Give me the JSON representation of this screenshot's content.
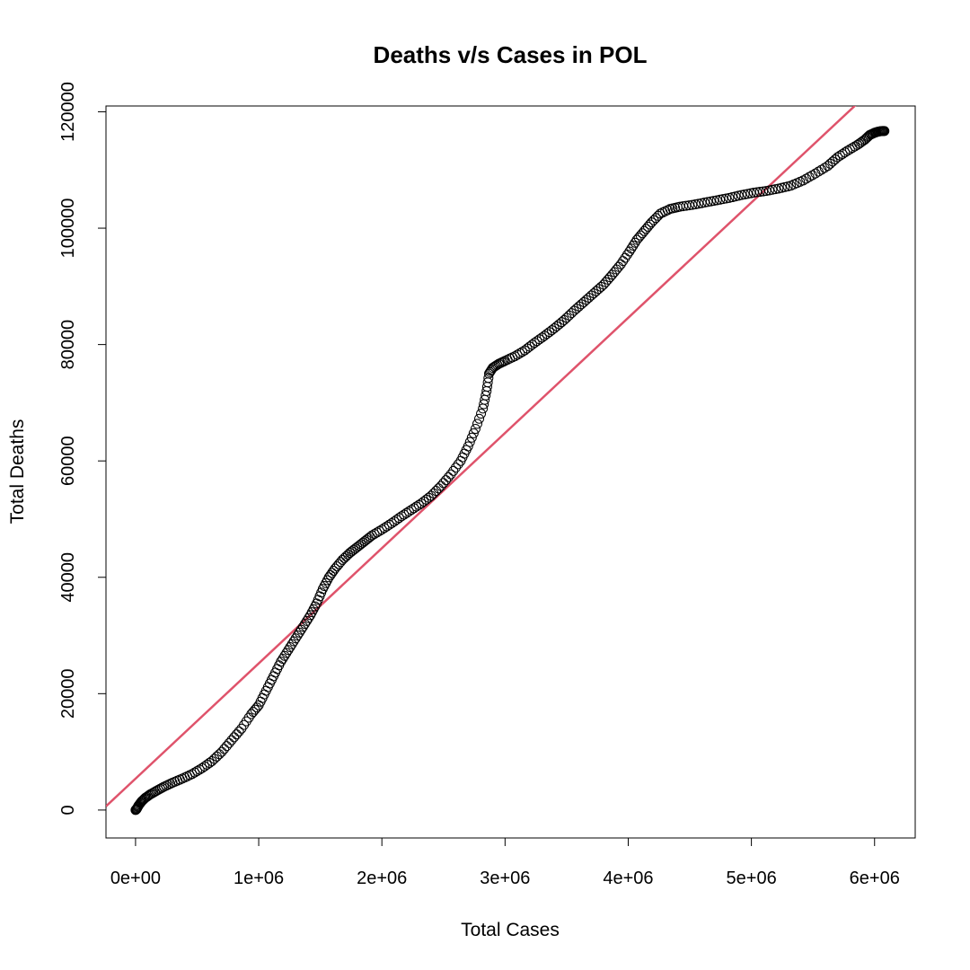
{
  "chart_data": {
    "type": "scatter",
    "title": "Deaths v/s Cases in POL",
    "xlabel": "Total Cases",
    "ylabel": "Total Deaths",
    "xlim": [
      -240000,
      6330000
    ],
    "ylim": [
      -4800,
      121000
    ],
    "x_ticks": [
      {
        "value": 0,
        "label": "0e+00"
      },
      {
        "value": 1000000,
        "label": "1e+06"
      },
      {
        "value": 2000000,
        "label": "2e+06"
      },
      {
        "value": 3000000,
        "label": "3e+06"
      },
      {
        "value": 4000000,
        "label": "4e+06"
      },
      {
        "value": 5000000,
        "label": "5e+06"
      },
      {
        "value": 6000000,
        "label": "6e+06"
      }
    ],
    "y_ticks": [
      {
        "value": 0,
        "label": "0"
      },
      {
        "value": 20000,
        "label": "20000"
      },
      {
        "value": 40000,
        "label": "40000"
      },
      {
        "value": 60000,
        "label": "60000"
      },
      {
        "value": 80000,
        "label": "80000"
      },
      {
        "value": 100000,
        "label": "100000"
      },
      {
        "value": 120000,
        "label": "120000"
      }
    ],
    "series": [
      {
        "type": "scatter",
        "marker": "open-circle",
        "color": "#000000",
        "points": [
          [
            0,
            0
          ],
          [
            10000,
            200
          ],
          [
            25000,
            800
          ],
          [
            50000,
            1500
          ],
          [
            80000,
            2100
          ],
          [
            120000,
            2700
          ],
          [
            170000,
            3300
          ],
          [
            230000,
            4000
          ],
          [
            300000,
            4700
          ],
          [
            380000,
            5400
          ],
          [
            460000,
            6200
          ],
          [
            540000,
            7200
          ],
          [
            620000,
            8400
          ],
          [
            700000,
            10000
          ],
          [
            780000,
            12000
          ],
          [
            860000,
            14000
          ],
          [
            940000,
            16500
          ],
          [
            1000000,
            18000
          ],
          [
            1060000,
            20500
          ],
          [
            1120000,
            23000
          ],
          [
            1180000,
            25500
          ],
          [
            1240000,
            27500
          ],
          [
            1300000,
            29500
          ],
          [
            1360000,
            31500
          ],
          [
            1420000,
            33500
          ],
          [
            1470000,
            35500
          ],
          [
            1520000,
            38000
          ],
          [
            1570000,
            40000
          ],
          [
            1620000,
            41500
          ],
          [
            1680000,
            43000
          ],
          [
            1740000,
            44200
          ],
          [
            1800000,
            45200
          ],
          [
            1860000,
            46200
          ],
          [
            1920000,
            47200
          ],
          [
            2000000,
            48200
          ],
          [
            2080000,
            49300
          ],
          [
            2160000,
            50500
          ],
          [
            2240000,
            51600
          ],
          [
            2320000,
            52700
          ],
          [
            2400000,
            54000
          ],
          [
            2480000,
            55700
          ],
          [
            2560000,
            57700
          ],
          [
            2640000,
            60000
          ],
          [
            2700000,
            62500
          ],
          [
            2760000,
            65500
          ],
          [
            2820000,
            69000
          ],
          [
            2850000,
            72000
          ],
          [
            2870000,
            75000
          ],
          [
            2900000,
            76000
          ],
          [
            2950000,
            76700
          ],
          [
            3000000,
            77200
          ],
          [
            3080000,
            78000
          ],
          [
            3160000,
            79000
          ],
          [
            3240000,
            80300
          ],
          [
            3320000,
            81500
          ],
          [
            3400000,
            82800
          ],
          [
            3480000,
            84200
          ],
          [
            3560000,
            85800
          ],
          [
            3640000,
            87300
          ],
          [
            3720000,
            88800
          ],
          [
            3800000,
            90300
          ],
          [
            3870000,
            92000
          ],
          [
            3940000,
            93800
          ],
          [
            4010000,
            96000
          ],
          [
            4070000,
            98000
          ],
          [
            4130000,
            99500
          ],
          [
            4190000,
            101000
          ],
          [
            4260000,
            102500
          ],
          [
            4340000,
            103300
          ],
          [
            4420000,
            103700
          ],
          [
            4520000,
            104000
          ],
          [
            4620000,
            104400
          ],
          [
            4720000,
            104800
          ],
          [
            4820000,
            105200
          ],
          [
            4920000,
            105700
          ],
          [
            5020000,
            106100
          ],
          [
            5120000,
            106400
          ],
          [
            5220000,
            106800
          ],
          [
            5320000,
            107300
          ],
          [
            5420000,
            108200
          ],
          [
            5520000,
            109400
          ],
          [
            5620000,
            110700
          ],
          [
            5700000,
            112200
          ],
          [
            5780000,
            113300
          ],
          [
            5860000,
            114300
          ],
          [
            5920000,
            115200
          ],
          [
            5960000,
            116000
          ],
          [
            6000000,
            116400
          ],
          [
            6030000,
            116600
          ],
          [
            6060000,
            116700
          ],
          [
            6080000,
            116700
          ]
        ]
      },
      {
        "type": "line",
        "color": "#df536b",
        "intercept": 5400,
        "slope": 0.0198
      }
    ]
  }
}
